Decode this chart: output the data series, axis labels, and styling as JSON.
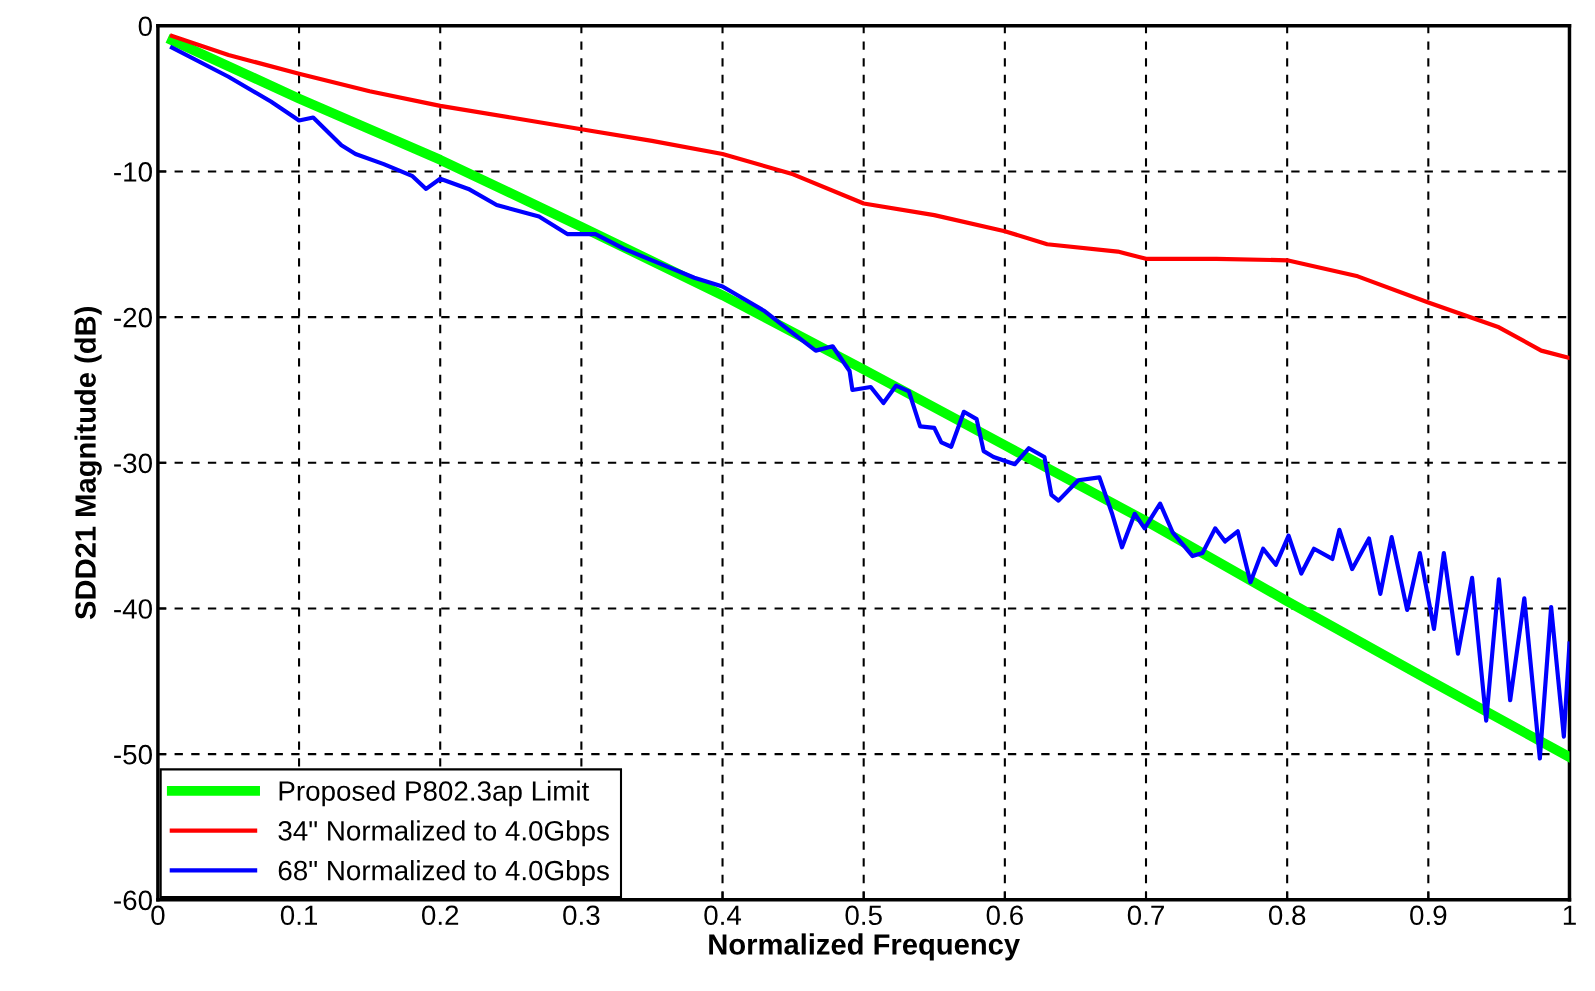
{
  "chart_data": {
    "type": "line",
    "xlabel": "Normalized Frequency",
    "ylabel": "SDD21 Magnitude (dB)",
    "xlim": [
      0,
      1
    ],
    "ylim": [
      -60,
      0
    ],
    "xticks": [
      0,
      0.1,
      0.2,
      0.3,
      0.4,
      0.5,
      0.6,
      0.7,
      0.8,
      0.9,
      1
    ],
    "yticks": [
      -60,
      -50,
      -40,
      -30,
      -20,
      -10,
      0
    ],
    "grid": true,
    "legend": "bottom left",
    "line_style": "solid",
    "series": [
      {
        "name": "Proposed P802.3ap Limit",
        "color": "#00ff00",
        "x": [
          0.01,
          0.1,
          0.2,
          0.3,
          0.4,
          0.5,
          0.6,
          0.7,
          0.8,
          0.9,
          1.0
        ],
        "values": [
          -1.0,
          -5.0,
          -9.2,
          -13.8,
          -18.5,
          -23.6,
          -28.8,
          -34.0,
          -39.5,
          -44.9,
          -50.2
        ]
      },
      {
        "name": "34\" Normalized to 4.0Gbps",
        "color": "#ff0000",
        "x": [
          0.01,
          0.05,
          0.1,
          0.15,
          0.2,
          0.25,
          0.3,
          0.35,
          0.4,
          0.45,
          0.5,
          0.55,
          0.6,
          0.63,
          0.68,
          0.7,
          0.75,
          0.8,
          0.85,
          0.9,
          0.95,
          0.98,
          1.0
        ],
        "values": [
          -0.7,
          -2,
          -3.3,
          -4.5,
          -5.5,
          -6.3,
          -7.1,
          -7.9,
          -8.8,
          -10.2,
          -12.2,
          -13,
          -14.1,
          -15,
          -15.5,
          -16,
          -16,
          -16.1,
          -17.2,
          -19,
          -20.7,
          -22.3,
          -22.8
        ]
      },
      {
        "name": "68\" Normalized to 4.0Gbps",
        "color": "#0000ff",
        "x": [
          0.01,
          0.05,
          0.08,
          0.1,
          0.11,
          0.13,
          0.14,
          0.16,
          0.18,
          0.19,
          0.2,
          0.22,
          0.24,
          0.27,
          0.29,
          0.31,
          0.33,
          0.36,
          0.38,
          0.4,
          0.43,
          0.447,
          0.466,
          0.478,
          0.49,
          0.492,
          0.505,
          0.514,
          0.523,
          0.532,
          0.54,
          0.55,
          0.555,
          0.562,
          0.571,
          0.58,
          0.585,
          0.592,
          0.607,
          0.617,
          0.628,
          0.633,
          0.638,
          0.652,
          0.667,
          0.676,
          0.683,
          0.692,
          0.699,
          0.71,
          0.719,
          0.733,
          0.74,
          0.749,
          0.756,
          0.765,
          0.774,
          0.783,
          0.792,
          0.801,
          0.81,
          0.819,
          0.832,
          0.837,
          0.846,
          0.858,
          0.866,
          0.874,
          0.885,
          0.894,
          0.904,
          0.911,
          0.921,
          0.931,
          0.941,
          0.95,
          0.958,
          0.968,
          0.979,
          0.987,
          0.996,
          1.0
        ],
        "values": [
          -1.5,
          -3.5,
          -5.2,
          -6.5,
          -6.3,
          -8.2,
          -8.8,
          -9.5,
          -10.3,
          -11.2,
          -10.5,
          -11.2,
          -12.3,
          -13.1,
          -14.3,
          -14.3,
          -15.3,
          -16.5,
          -17.3,
          -17.9,
          -19.6,
          -20.9,
          -22.3,
          -22.0,
          -23.7,
          -25.0,
          -24.8,
          -25.9,
          -24.7,
          -25.1,
          -27.5,
          -27.6,
          -28.6,
          -28.9,
          -26.5,
          -27.0,
          -29.2,
          -29.6,
          -30.1,
          -29.0,
          -29.6,
          -32.2,
          -32.6,
          -31.2,
          -31.0,
          -33.5,
          -35.8,
          -33.5,
          -34.5,
          -32.8,
          -34.8,
          -36.4,
          -36.2,
          -34.5,
          -35.4,
          -34.7,
          -38.2,
          -35.9,
          -37.0,
          -35.0,
          -37.6,
          -35.9,
          -36.6,
          -34.6,
          -37.3,
          -35.2,
          -39.0,
          -35.1,
          -40.1,
          -36.2,
          -41.4,
          -36.2,
          -43.1,
          -37.9,
          -47.7,
          -38.0,
          -46.3,
          -39.3,
          -50.3,
          -39.9,
          -48.8,
          -42.4
        ]
      }
    ]
  }
}
